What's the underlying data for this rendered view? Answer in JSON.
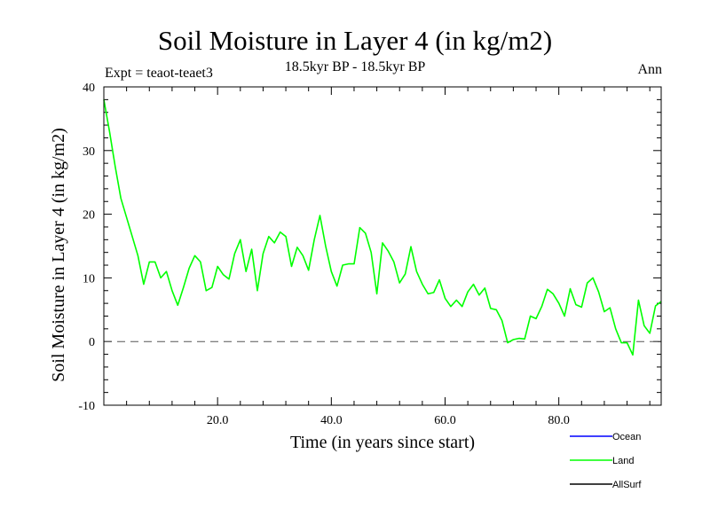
{
  "header": {
    "title": "Soil Moisture in Layer 4 (in kg/m2)",
    "subtitle": "18.5kyr BP - 18.5kyr BP",
    "expt": "Expt = teaot-teaet3",
    "season": "Ann"
  },
  "colors": {
    "ocean": "#0000ff",
    "land": "#00ff00",
    "allsurf": "#000000",
    "zero_line": "#555555"
  },
  "chart_data": {
    "type": "line",
    "title": "Soil Moisture in Layer 4 (in kg/m2)",
    "xlabel": "Time (in years since start)",
    "ylabel": "Soil Moisture in Layer 4 (in kg/m2)",
    "xlim": [
      0,
      98
    ],
    "ylim": [
      -10,
      40
    ],
    "x_ticks": [
      20,
      40,
      60,
      80
    ],
    "x_tick_labels": [
      "20.0",
      "40.0",
      "60.0",
      "80.0"
    ],
    "y_ticks": [
      -10,
      0,
      10,
      20,
      30,
      40
    ],
    "y_tick_labels": [
      "-10",
      "0",
      "10",
      "20",
      "30",
      "40"
    ],
    "reference_line": {
      "y": 0,
      "style": "dashed"
    },
    "legend": [
      "Ocean",
      "Land",
      "AllSurf"
    ],
    "series": [
      {
        "name": "Ocean",
        "color": "#0000ff",
        "values": []
      },
      {
        "name": "Land",
        "color": "#00ff00",
        "x": [
          0,
          1,
          2,
          3,
          4,
          5,
          6,
          7,
          8,
          9,
          10,
          11,
          12,
          13,
          14,
          15,
          16,
          17,
          18,
          19,
          20,
          21,
          22,
          23,
          24,
          25,
          26,
          27,
          28,
          29,
          30,
          31,
          32,
          33,
          34,
          35,
          36,
          37,
          38,
          39,
          40,
          41,
          42,
          43,
          44,
          45,
          46,
          47,
          48,
          49,
          50,
          51,
          52,
          53,
          54,
          55,
          56,
          57,
          58,
          59,
          60,
          61,
          62,
          63,
          64,
          65,
          66,
          67,
          68,
          69,
          70,
          71,
          72,
          73,
          74,
          75,
          76,
          77,
          78,
          79,
          80,
          81,
          82,
          83,
          84,
          85,
          86,
          87,
          88,
          89,
          90,
          91,
          92,
          93,
          94,
          95,
          96,
          97,
          98
        ],
        "values": [
          38,
          33,
          27.5,
          22.5,
          19.5,
          16.5,
          13.5,
          9,
          12.5,
          12.5,
          10,
          11,
          8,
          5.7,
          8.5,
          11.5,
          13.5,
          12.5,
          8,
          8.5,
          11.8,
          10.5,
          9.8,
          13.8,
          16,
          11,
          14.5,
          8,
          13.8,
          16.5,
          15.5,
          17.2,
          16.5,
          11.8,
          14.8,
          13.5,
          11.2,
          16,
          19.8,
          15,
          11,
          8.7,
          12,
          12.2,
          12.2,
          17.9,
          17,
          14,
          7.5,
          15.5,
          14.2,
          12.5,
          9.2,
          10.6,
          14.9,
          11,
          9,
          7.5,
          7.7,
          9.7,
          6.8,
          5.5,
          6.5,
          5.5,
          7.8,
          9,
          7.3,
          8.4,
          5.2,
          5,
          3.3,
          -0.2,
          0.3,
          0.5,
          0.4,
          4,
          3.6,
          5.5,
          8.2,
          7.5,
          6,
          4,
          8.3,
          5.8,
          5.4,
          9.2,
          10,
          7.8,
          4.7,
          5.3,
          2,
          -0.2,
          -0.2,
          -2.1,
          6.5,
          2.5,
          1.3,
          5.6,
          6.3
        ]
      },
      {
        "name": "AllSurf",
        "color": "#000000",
        "values": []
      }
    ]
  }
}
